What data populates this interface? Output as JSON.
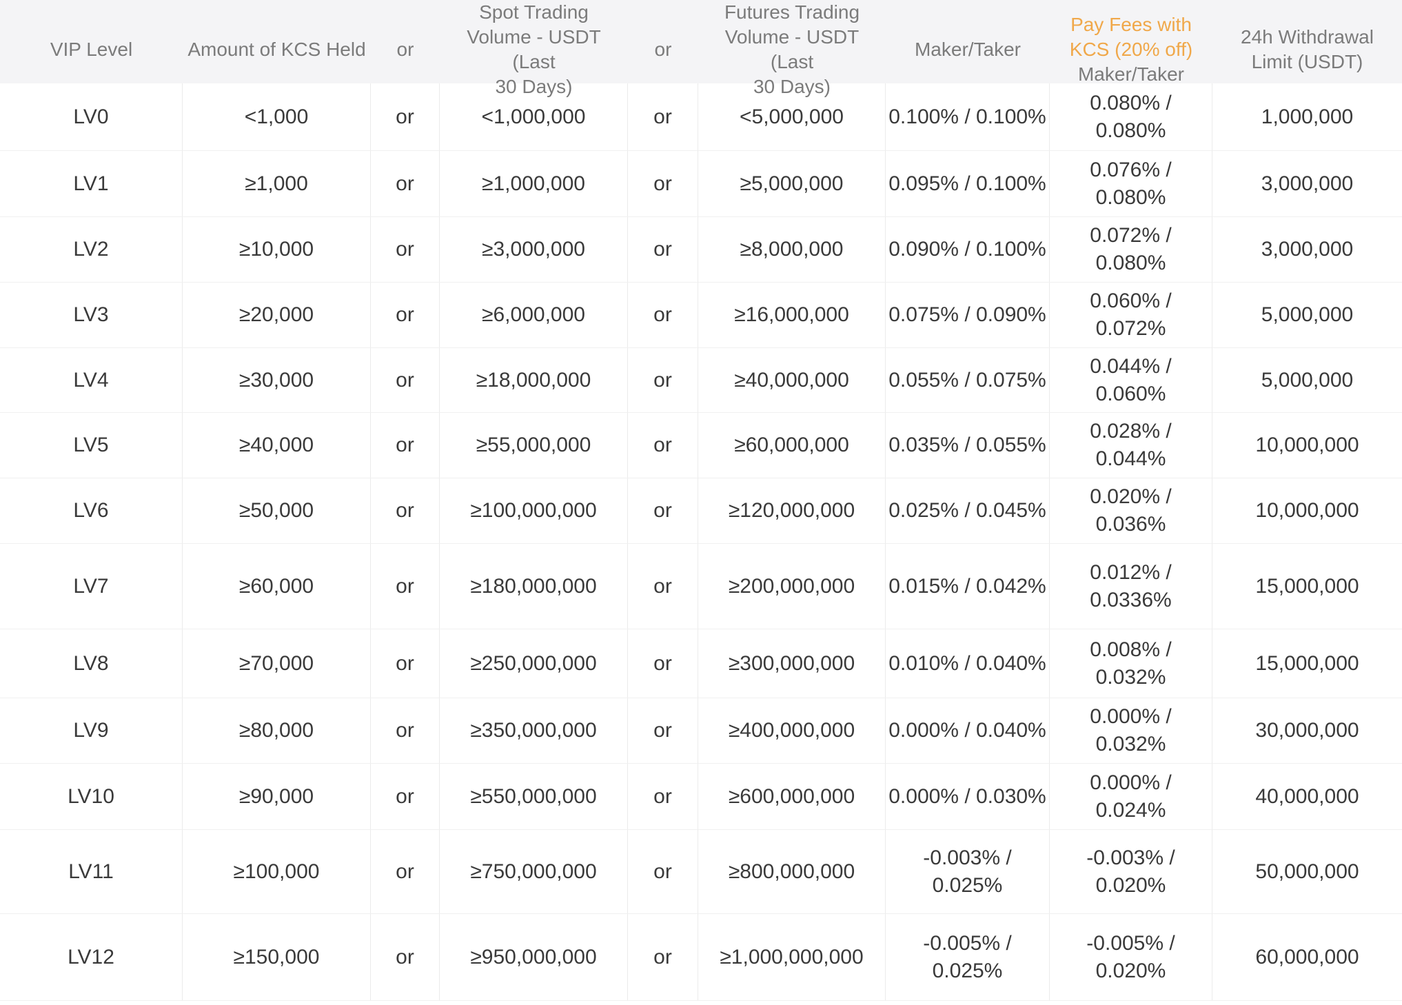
{
  "accent_color": "#f0a84a",
  "header": {
    "vip_level": "VIP Level",
    "kcs_held": "Amount of KCS Held",
    "or1": "or",
    "spot_volume": "Spot Trading\nVolume - USDT (Last\n30 Days)",
    "or2": "or",
    "futures_volume": "Futures Trading\nVolume - USDT (Last\n30 Days)",
    "maker_taker": "Maker/Taker",
    "kcs_fee_highlight": "Pay Fees with\nKCS (20% off)",
    "kcs_fee_sub": "Maker/Taker",
    "withdrawal_limit": "24h Withdrawal\nLimit (USDT)"
  },
  "rows": [
    [
      "LV0",
      "<1,000",
      "or",
      "<1,000,000",
      "or",
      "<5,000,000",
      "0.100% / 0.100%",
      "0.080% / 0.080%",
      "1,000,000"
    ],
    [
      "LV1",
      "≥1,000",
      "or",
      "≥1,000,000",
      "or",
      "≥5,000,000",
      "0.095% / 0.100%",
      "0.076% / 0.080%",
      "3,000,000"
    ],
    [
      "LV2",
      "≥10,000",
      "or",
      "≥3,000,000",
      "or",
      "≥8,000,000",
      "0.090% / 0.100%",
      "0.072% / 0.080%",
      "3,000,000"
    ],
    [
      "LV3",
      "≥20,000",
      "or",
      "≥6,000,000",
      "or",
      "≥16,000,000",
      "0.075% / 0.090%",
      "0.060% / 0.072%",
      "5,000,000"
    ],
    [
      "LV4",
      "≥30,000",
      "or",
      "≥18,000,000",
      "or",
      "≥40,000,000",
      "0.055% / 0.075%",
      "0.044% / 0.060%",
      "5,000,000"
    ],
    [
      "LV5",
      "≥40,000",
      "or",
      "≥55,000,000",
      "or",
      "≥60,000,000",
      "0.035% / 0.055%",
      "0.028% / 0.044%",
      "10,000,000"
    ],
    [
      "LV6",
      "≥50,000",
      "or",
      "≥100,000,000",
      "or",
      "≥120,000,000",
      "0.025% / 0.045%",
      "0.020% / 0.036%",
      "10,000,000"
    ],
    [
      "LV7",
      "≥60,000",
      "or",
      "≥180,000,000",
      "or",
      "≥200,000,000",
      "0.015% / 0.042%",
      "0.012% /\n0.0336%",
      "15,000,000"
    ],
    [
      "LV8",
      "≥70,000",
      "or",
      "≥250,000,000",
      "or",
      "≥300,000,000",
      "0.010% / 0.040%",
      "0.008% / 0.032%",
      "15,000,000"
    ],
    [
      "LV9",
      "≥80,000",
      "or",
      "≥350,000,000",
      "or",
      "≥400,000,000",
      "0.000% / 0.040%",
      "0.000% / 0.032%",
      "30,000,000"
    ],
    [
      "LV10",
      "≥90,000",
      "or",
      "≥550,000,000",
      "or",
      "≥600,000,000",
      "0.000% / 0.030%",
      "0.000% / 0.024%",
      "40,000,000"
    ],
    [
      "LV11",
      "≥100,000",
      "or",
      "≥750,000,000",
      "or",
      "≥800,000,000",
      "-0.003% /\n0.025%",
      "-0.003% /\n0.020%",
      "50,000,000"
    ],
    [
      "LV12",
      "≥150,000",
      "or",
      "≥950,000,000",
      "or",
      "≥1,000,000,000",
      "-0.005% /\n0.025%",
      "-0.005% /\n0.020%",
      "60,000,000"
    ]
  ],
  "cell_names": [
    "cell-vip-level",
    "cell-kcs-held",
    "cell-or",
    "cell-spot-volume",
    "cell-or",
    "cell-futures-volume",
    "cell-maker-taker",
    "cell-kcs-fee",
    "cell-withdrawal-limit"
  ]
}
